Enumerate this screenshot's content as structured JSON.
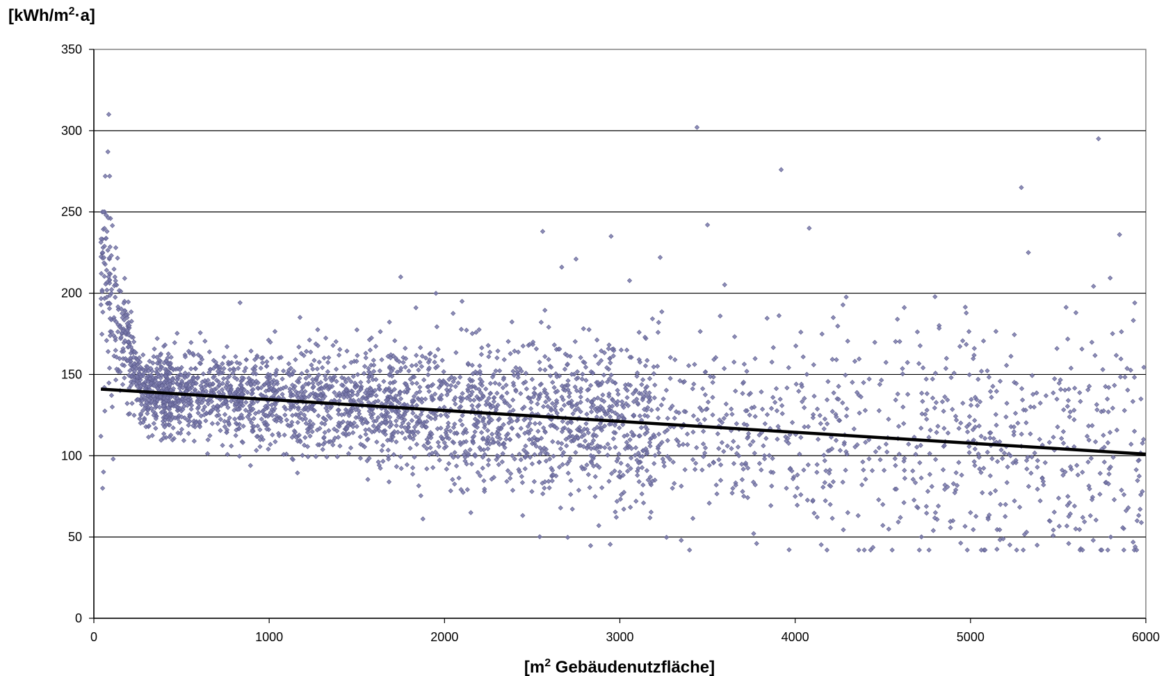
{
  "chart_data": {
    "type": "scatter",
    "ylabel": {
      "prefix": "[kWh/m",
      "sup": "2",
      "suffix": "·a]"
    },
    "xlabel": {
      "prefix": "[m",
      "sup": "2",
      "suffix": " Gebäudenutzfläche]"
    },
    "xlim": [
      0,
      6000
    ],
    "ylim": [
      0,
      350
    ],
    "xticks": [
      "0",
      "1000",
      "2000",
      "3000",
      "4000",
      "5000",
      "6000"
    ],
    "yticks": [
      "0",
      "50",
      "100",
      "150",
      "200",
      "250",
      "300",
      "350"
    ],
    "grid": "horizontal",
    "legend": "none",
    "colors": {
      "points": "#7878aa",
      "trend": "#000000",
      "grid": "#000000"
    },
    "series": [
      {
        "kind": "points",
        "points": [
          [
            40,
            112
          ],
          [
            50,
            80
          ],
          [
            55,
            90
          ],
          [
            60,
            142
          ],
          [
            65,
            272
          ],
          [
            70,
            248
          ],
          [
            75,
            238
          ],
          [
            80,
            287
          ],
          [
            85,
            310
          ],
          [
            90,
            272
          ],
          [
            95,
            246
          ],
          [
            100,
            200
          ],
          [
            105,
            130
          ],
          [
            110,
            98
          ],
          [
            115,
            185
          ],
          [
            120,
            210
          ],
          [
            125,
            228
          ],
          [
            130,
            205
          ],
          [
            140,
            190
          ],
          [
            150,
            180
          ],
          [
            160,
            175
          ],
          [
            175,
            195
          ],
          [
            190,
            185
          ],
          [
            200,
            170
          ],
          [
            220,
            165
          ],
          [
            240,
            160
          ],
          [
            260,
            150
          ],
          [
            300,
            155
          ],
          [
            350,
            148
          ],
          [
            400,
            145
          ],
          [
            450,
            140
          ],
          [
            500,
            138
          ],
          [
            550,
            135
          ],
          [
            520,
            162
          ],
          [
            600,
            132
          ],
          [
            700,
            130
          ],
          [
            800,
            128
          ],
          [
            900,
            128
          ],
          [
            1000,
            125
          ],
          [
            1100,
            122
          ],
          [
            1200,
            125
          ],
          [
            1300,
            120
          ],
          [
            1400,
            118
          ],
          [
            1500,
            118
          ],
          [
            1600,
            115
          ],
          [
            1700,
            112
          ],
          [
            1750,
            210
          ],
          [
            1800,
            112
          ],
          [
            1900,
            110
          ],
          [
            2000,
            108
          ],
          [
            2100,
            195
          ],
          [
            2150,
            65
          ],
          [
            2200,
            105
          ],
          [
            2300,
            100
          ],
          [
            2400,
            98
          ],
          [
            2500,
            95
          ],
          [
            2560,
            238
          ],
          [
            2600,
            98
          ],
          [
            2700,
            95
          ],
          [
            2750,
            221
          ],
          [
            2800,
            92
          ],
          [
            2880,
            57
          ],
          [
            2950,
            235
          ],
          [
            3000,
            90
          ],
          [
            3100,
            88
          ],
          [
            3200,
            85
          ],
          [
            3230,
            222
          ],
          [
            3300,
            80
          ],
          [
            3350,
            48
          ],
          [
            3440,
            302
          ],
          [
            3500,
            242
          ],
          [
            3550,
            82
          ],
          [
            3700,
            78
          ],
          [
            3780,
            46
          ],
          [
            3920,
            276
          ],
          [
            3950,
            80
          ],
          [
            4000,
            75
          ],
          [
            4080,
            240
          ],
          [
            4100,
            72
          ],
          [
            4200,
            70
          ],
          [
            4300,
            65
          ],
          [
            4430,
            42
          ],
          [
            4500,
            70
          ],
          [
            4600,
            62
          ],
          [
            4700,
            68
          ],
          [
            4800,
            65
          ],
          [
            4900,
            60
          ],
          [
            5000,
            65
          ],
          [
            5100,
            62
          ],
          [
            5200,
            70
          ],
          [
            5290,
            265
          ],
          [
            5330,
            225
          ],
          [
            5380,
            45
          ],
          [
            5450,
            60
          ],
          [
            5560,
            46
          ],
          [
            5600,
            55
          ],
          [
            5700,
            48
          ],
          [
            5730,
            295
          ],
          [
            5800,
            50
          ],
          [
            5850,
            236
          ],
          [
            5900,
            68
          ],
          [
            5950,
            60
          ],
          [
            5980,
            78
          ]
        ]
      },
      {
        "kind": "trend",
        "points": [
          [
            40,
            141
          ],
          [
            6000,
            101
          ]
        ]
      }
    ]
  }
}
